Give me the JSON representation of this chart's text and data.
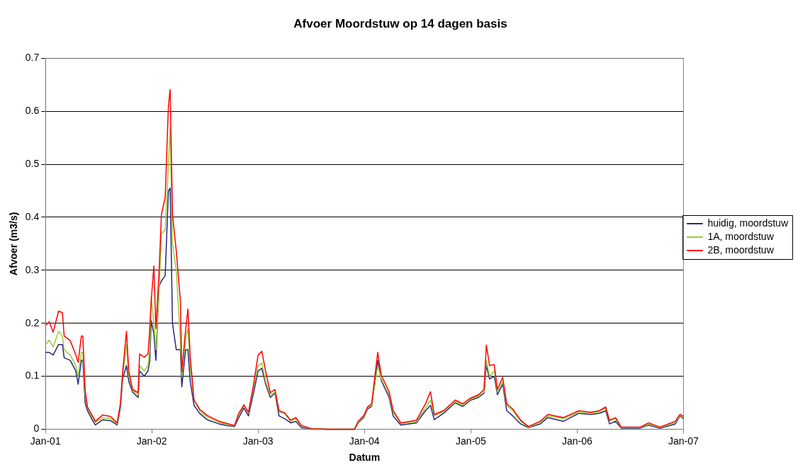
{
  "chart_data": {
    "type": "line",
    "title": "Afvoer Moordstuw op 14 dagen basis",
    "xlabel": "Datum",
    "ylabel": "Afvoer (m3/s)",
    "x": [
      "2001-01-01",
      "2001-01-14",
      "2001-01-27",
      "2001-02-15",
      "2001-02-28",
      "2001-03-06",
      "2001-03-27",
      "2001-04-15",
      "2001-04-23",
      "2001-05-04",
      "2001-05-09",
      "2001-05-17",
      "2001-05-25",
      "2001-06-08",
      "2001-06-21",
      "2001-07-17",
      "2001-08-13",
      "2001-09-04",
      "2001-09-15",
      "2001-09-23",
      "2001-10-06",
      "2001-10-14",
      "2001-10-27",
      "2001-11-15",
      "2001-11-20",
      "2001-12-06",
      "2001-12-19",
      "2001-12-25",
      "2001-12-30",
      "2002-01-08",
      "2002-01-15",
      "2002-01-26",
      "2002-02-03",
      "2002-02-16",
      "2002-02-27",
      "2002-03-05",
      "2002-03-13",
      "2002-03-26",
      "2002-04-09",
      "2002-04-14",
      "2002-04-27",
      "2002-05-05",
      "2002-05-13",
      "2002-05-26",
      "2002-06-14",
      "2002-07-10",
      "2002-08-20",
      "2002-09-16",
      "2002-10-12",
      "2002-10-25",
      "2002-11-13",
      "2002-11-29",
      "2002-12-17",
      "2003-01-01",
      "2003-01-14",
      "2003-01-27",
      "2003-02-12",
      "2003-02-28",
      "2003-03-14",
      "2003-04-02",
      "2003-04-23",
      "2003-05-11",
      "2003-05-30",
      "2003-07-04",
      "2003-08-27",
      "2003-11-28",
      "2003-12-11",
      "2003-12-30",
      "2004-01-12",
      "2004-01-26",
      "2004-02-16",
      "2004-02-28",
      "2004-03-26",
      "2004-04-09",
      "2004-05-05",
      "2004-06-28",
      "2004-07-29",
      "2004-08-15",
      "2004-08-28",
      "2004-09-29",
      "2004-11-08",
      "2004-12-04",
      "2005-01-01",
      "2005-01-27",
      "2005-02-15",
      "2005-02-23",
      "2005-03-06",
      "2005-03-22",
      "2005-04-02",
      "2005-04-20",
      "2005-05-04",
      "2005-05-25",
      "2005-06-21",
      "2005-07-17",
      "2005-08-27",
      "2005-09-22",
      "2005-11-15",
      "2006-01-07",
      "2006-02-16",
      "2006-03-18",
      "2006-04-09",
      "2006-04-22",
      "2006-05-13",
      "2006-06-01",
      "2006-08-06",
      "2006-09-03",
      "2006-10-12",
      "2006-12-04",
      "2006-12-20",
      "2007-01-01"
    ],
    "series": [
      {
        "name": "huidig, moordstuw",
        "color": "#262680",
        "values": [
          0.145,
          0.145,
          0.14,
          0.16,
          0.16,
          0.135,
          0.13,
          0.11,
          0.085,
          0.13,
          0.13,
          0.05,
          0.035,
          0.02,
          0.008,
          0.018,
          0.016,
          0.008,
          0.04,
          0.095,
          0.12,
          0.09,
          0.07,
          0.06,
          0.11,
          0.1,
          0.11,
          0.13,
          0.205,
          0.18,
          0.13,
          0.27,
          0.28,
          0.29,
          0.45,
          0.455,
          0.2,
          0.15,
          0.15,
          0.08,
          0.15,
          0.15,
          0.09,
          0.045,
          0.03,
          0.018,
          0.01,
          0.007,
          0.005,
          0.02,
          0.04,
          0.025,
          0.07,
          0.11,
          0.115,
          0.085,
          0.06,
          0.068,
          0.025,
          0.02,
          0.012,
          0.015,
          0.003,
          0.001,
          0,
          0,
          0.012,
          0.022,
          0.038,
          0.043,
          0.13,
          0.092,
          0.06,
          0.025,
          0.008,
          0.012,
          0.035,
          0.045,
          0.018,
          0.03,
          0.05,
          0.043,
          0.055,
          0.06,
          0.068,
          0.12,
          0.095,
          0.1,
          0.065,
          0.085,
          0.035,
          0.025,
          0.01,
          0.003,
          0.01,
          0.022,
          0.015,
          0.03,
          0.028,
          0.03,
          0.035,
          0.01,
          0.015,
          0.002,
          0.002,
          0.008,
          0.002,
          0.01,
          0.025,
          0.02
        ]
      },
      {
        "name": "1A, moordstuw",
        "color": "#99cc33",
        "values": [
          0.16,
          0.168,
          0.155,
          0.185,
          0.175,
          0.15,
          0.14,
          0.12,
          0.1,
          0.145,
          0.145,
          0.065,
          0.04,
          0.025,
          0.013,
          0.022,
          0.02,
          0.01,
          0.045,
          0.1,
          0.16,
          0.1,
          0.073,
          0.065,
          0.12,
          0.11,
          0.12,
          0.15,
          0.25,
          0.2,
          0.15,
          0.26,
          0.37,
          0.375,
          0.5,
          0.57,
          0.35,
          0.3,
          0.17,
          0.1,
          0.17,
          0.19,
          0.12,
          0.055,
          0.035,
          0.023,
          0.013,
          0.009,
          0.006,
          0.026,
          0.045,
          0.03,
          0.08,
          0.12,
          0.125,
          0.09,
          0.065,
          0.07,
          0.033,
          0.03,
          0.015,
          0.02,
          0.005,
          0.001,
          0,
          0,
          0.013,
          0.024,
          0.04,
          0.045,
          0.12,
          0.095,
          0.065,
          0.032,
          0.011,
          0.014,
          0.04,
          0.055,
          0.026,
          0.033,
          0.052,
          0.045,
          0.057,
          0.063,
          0.07,
          0.13,
          0.1,
          0.11,
          0.07,
          0.09,
          0.045,
          0.035,
          0.015,
          0.004,
          0.013,
          0.025,
          0.02,
          0.032,
          0.03,
          0.033,
          0.04,
          0.015,
          0.02,
          0.003,
          0.003,
          0.01,
          0.003,
          0.013,
          0.026,
          0.022
        ]
      },
      {
        "name": "2B, moordstuw",
        "color": "#ff0000",
        "values": [
          0.196,
          0.203,
          0.183,
          0.223,
          0.22,
          0.176,
          0.167,
          0.14,
          0.126,
          0.176,
          0.176,
          0.075,
          0.042,
          0.028,
          0.015,
          0.027,
          0.024,
          0.012,
          0.048,
          0.109,
          0.185,
          0.109,
          0.075,
          0.069,
          0.142,
          0.136,
          0.142,
          0.19,
          0.243,
          0.308,
          0.19,
          0.297,
          0.405,
          0.438,
          0.61,
          0.641,
          0.405,
          0.337,
          0.243,
          0.109,
          0.187,
          0.227,
          0.136,
          0.055,
          0.038,
          0.026,
          0.015,
          0.011,
          0.007,
          0.028,
          0.046,
          0.032,
          0.086,
          0.14,
          0.147,
          0.109,
          0.069,
          0.075,
          0.035,
          0.031,
          0.017,
          0.022,
          0.007,
          0.001,
          0,
          0,
          0.015,
          0.026,
          0.042,
          0.048,
          0.145,
          0.102,
          0.071,
          0.035,
          0.012,
          0.017,
          0.048,
          0.071,
          0.028,
          0.035,
          0.055,
          0.048,
          0.059,
          0.065,
          0.075,
          0.159,
          0.12,
          0.122,
          0.075,
          0.098,
          0.048,
          0.038,
          0.017,
          0.005,
          0.015,
          0.028,
          0.022,
          0.035,
          0.032,
          0.035,
          0.042,
          0.017,
          0.022,
          0.004,
          0.004,
          0.012,
          0.004,
          0.015,
          0.028,
          0.024
        ]
      }
    ],
    "xlim": [
      "2001-01-01",
      "2007-01-01"
    ],
    "xticks": [
      {
        "value": "2001-01-01",
        "label": "Jan-01"
      },
      {
        "value": "2002-01-01",
        "label": "Jan-02"
      },
      {
        "value": "2003-01-01",
        "label": "Jan-03"
      },
      {
        "value": "2004-01-01",
        "label": "Jan-04"
      },
      {
        "value": "2005-01-01",
        "label": "Jan-05"
      },
      {
        "value": "2006-01-01",
        "label": "Jan-06"
      },
      {
        "value": "2007-01-01",
        "label": "Jan-07"
      }
    ],
    "ylim": [
      0,
      0.7
    ],
    "yticks": [
      0,
      0.1,
      0.2,
      0.3,
      0.4,
      0.5,
      0.6,
      0.7
    ],
    "grid": "y",
    "legend": "right",
    "marker": "none",
    "line_style": "solid"
  }
}
